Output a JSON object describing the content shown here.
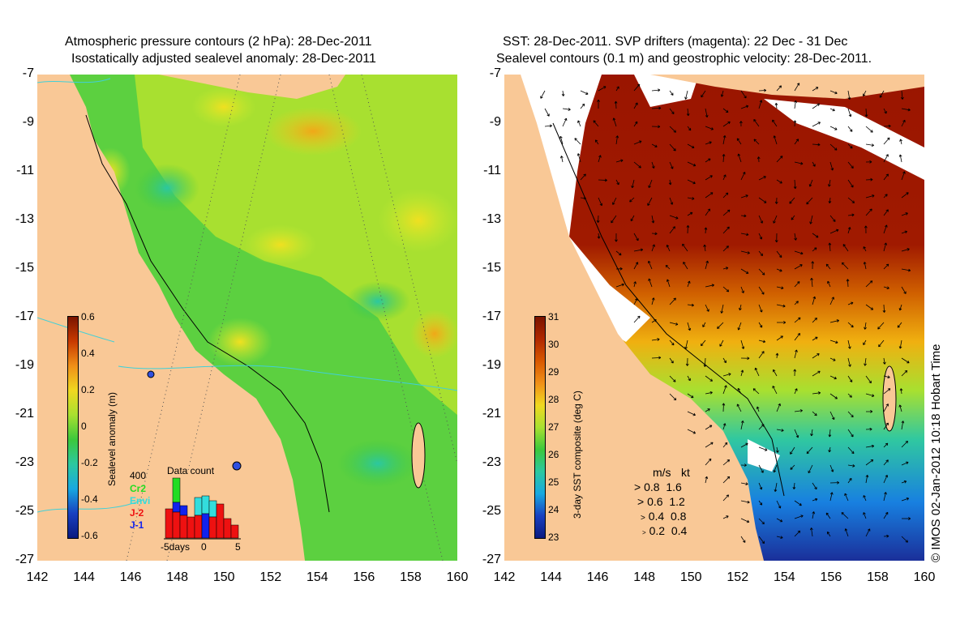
{
  "left_panel": {
    "title_line1": "Atmospheric pressure contours (2 hPa): 28-Dec-2011",
    "title_line2": "Isostatically adjusted sealevel anomaly: 28-Dec-2011",
    "colorbar": {
      "label": "Sealevel anomaly (m)",
      "ticks": [
        "0.6",
        "0.4",
        "0.2",
        "0",
        "-0.2",
        "-0.4",
        "-0.6"
      ],
      "range": [
        -0.6,
        0.6
      ]
    },
    "data_count": {
      "title": "Data count",
      "y_max_label": "400",
      "satellites": [
        {
          "name": "Cr2",
          "color": "#22dd22"
        },
        {
          "name": "Envi",
          "color": "#33dddd"
        },
        {
          "name": "J-2",
          "color": "#ee1111"
        },
        {
          "name": "J-1",
          "color": "#1122ee"
        }
      ],
      "x_labels": [
        "-5days",
        "0",
        "5"
      ]
    }
  },
  "right_panel": {
    "title_line1": "SST: 28-Dec-2011. SVP drifters (magenta): 22 Dec - 31 Dec",
    "title_line2": "Sealevel contours (0.1 m) and geostrophic velocity: 28-Dec-2011.",
    "colorbar": {
      "label": "3-day SST composite (deg C)",
      "ticks": [
        "31",
        "30",
        "29",
        "28",
        "27",
        "26",
        "25",
        "24",
        "23"
      ],
      "range": [
        23,
        31
      ]
    },
    "velocity_legend": {
      "header_ms": "m/s",
      "header_kt": "kt",
      "rows": [
        {
          "ms": "0.8",
          "kt": "1.6"
        },
        {
          "ms": "0.6",
          "kt": "1.2"
        },
        {
          "ms": "0.4",
          "kt": "0.8"
        },
        {
          "ms": "0.2",
          "kt": "0.4"
        }
      ]
    }
  },
  "axes": {
    "y_ticks": [
      "-7",
      "-9",
      "-11",
      "-13",
      "-15",
      "-17",
      "-19",
      "-21",
      "-23",
      "-25",
      "-27"
    ],
    "x_ticks": [
      "142",
      "144",
      "146",
      "148",
      "150",
      "152",
      "154",
      "156",
      "158",
      "160"
    ],
    "lat_range": [
      -27,
      -7
    ],
    "lon_range": [
      142,
      160
    ]
  },
  "copyright": "© IMOS 02-Jan-2012 10:18 Hobart Time",
  "colors": {
    "land": "#f9c896",
    "anomaly_green": "#3cc83c",
    "anomaly_yellow": "#d8ee30",
    "sst_hot": "#9a1500",
    "sst_cold": "#1a2f9a"
  }
}
